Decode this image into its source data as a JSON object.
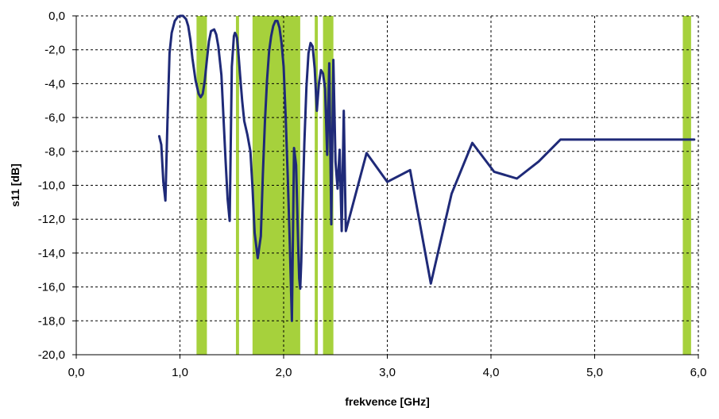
{
  "chart_data": {
    "type": "line",
    "xlabel": "frekvence [GHz]",
    "ylabel": "s11 [dB]",
    "xlim": [
      0,
      6
    ],
    "ylim": [
      -20,
      0
    ],
    "x_ticks": [
      0,
      1,
      2,
      3,
      4,
      5,
      6
    ],
    "y_ticks": [
      0,
      -2,
      -4,
      -6,
      -8,
      -10,
      -12,
      -14,
      -16,
      -18,
      -20
    ],
    "x_tick_labels": [
      "0,0",
      "1,0",
      "2,0",
      "3,0",
      "4,0",
      "5,0",
      "6,0"
    ],
    "y_tick_labels": [
      "0,0",
      "-2,0",
      "-4,0",
      "-6,0",
      "-8,0",
      "-10,0",
      "-12,0",
      "-14,0",
      "-16,0",
      "-18,0",
      "-20,0"
    ],
    "grid": true,
    "legend": "none",
    "bands": [
      {
        "x0": 1.16,
        "x1": 1.26
      },
      {
        "x0": 1.54,
        "x1": 1.57
      },
      {
        "x0": 1.7,
        "x1": 2.16
      },
      {
        "x0": 2.3,
        "x1": 2.33
      },
      {
        "x0": 2.38,
        "x1": 2.48
      },
      {
        "x0": 5.85,
        "x1": 5.93
      }
    ],
    "series": [
      {
        "x": [
          0.8,
          0.82,
          0.84,
          0.86,
          0.88,
          0.9,
          0.92,
          0.95,
          0.98,
          1.0,
          1.03,
          1.06,
          1.08,
          1.1,
          1.12,
          1.15,
          1.18,
          1.2,
          1.22,
          1.24,
          1.26,
          1.28,
          1.3,
          1.33,
          1.35,
          1.37,
          1.4,
          1.42,
          1.44,
          1.46,
          1.48,
          1.5,
          1.52,
          1.53,
          1.54,
          1.55,
          1.56,
          1.58,
          1.6,
          1.62,
          1.65,
          1.68,
          1.7,
          1.72,
          1.75,
          1.78,
          1.8,
          1.82,
          1.84,
          1.86,
          1.88,
          1.9,
          1.92,
          1.94,
          1.96,
          1.98,
          2.0,
          2.02,
          2.04,
          2.06,
          2.08,
          2.1,
          2.12,
          2.14,
          2.15,
          2.16,
          2.17,
          2.18,
          2.2,
          2.22,
          2.24,
          2.26,
          2.28,
          2.3,
          2.32,
          2.34,
          2.36,
          2.38,
          2.4,
          2.42,
          2.44,
          2.46,
          2.48,
          2.5,
          2.52,
          2.54,
          2.56,
          2.58,
          2.6,
          2.8,
          3.0,
          3.22,
          3.42,
          3.62,
          3.82,
          4.03,
          4.25,
          4.46,
          4.67,
          4.88,
          5.09,
          5.3,
          5.5,
          5.72,
          5.85,
          5.88,
          5.91,
          5.94,
          5.96
        ],
        "y": [
          -7.1,
          -7.6,
          -9.8,
          -10.9,
          -6.2,
          -2.2,
          -1.0,
          -0.3,
          -0.05,
          0.0,
          0.0,
          -0.2,
          -0.6,
          -1.4,
          -2.5,
          -3.8,
          -4.6,
          -4.8,
          -4.6,
          -3.8,
          -2.6,
          -1.5,
          -0.9,
          -0.8,
          -1.1,
          -1.8,
          -3.5,
          -6.0,
          -8.5,
          -10.8,
          -12.1,
          -3.0,
          -1.2,
          -1.0,
          -1.1,
          -1.3,
          -1.9,
          -3.5,
          -5.0,
          -6.2,
          -7.0,
          -8.0,
          -10.2,
          -12.8,
          -14.3,
          -13.0,
          -9.3,
          -6.2,
          -3.8,
          -2.1,
          -1.2,
          -0.6,
          -0.3,
          -0.3,
          -0.7,
          -1.6,
          -3.0,
          -6.0,
          -9.5,
          -13.5,
          -18.0,
          -7.8,
          -8.8,
          -13.5,
          -15.5,
          -16.1,
          -14.5,
          -11.8,
          -7.5,
          -4.2,
          -2.2,
          -1.6,
          -1.8,
          -3.1,
          -5.6,
          -4.0,
          -3.2,
          -3.4,
          -4.3,
          -8.2,
          -2.8,
          -12.3,
          -2.6,
          -8.6,
          -10.2,
          -7.9,
          -12.7,
          -5.6,
          -12.7,
          -8.1,
          -9.8,
          -9.1,
          -15.8,
          -10.5,
          -7.5,
          -9.2,
          -9.6,
          -8.6,
          -7.3,
          -7.3,
          -7.3,
          -7.3,
          -7.3,
          -7.3,
          -7.3,
          -7.3,
          -7.3,
          -7.3,
          -7.3
        ],
        "color": "#1f2a78"
      }
    ],
    "colors": {
      "band": "#a6d13c",
      "line": "#1f2a78",
      "grid": "#000000",
      "plot_bg": "#ffffff"
    }
  }
}
